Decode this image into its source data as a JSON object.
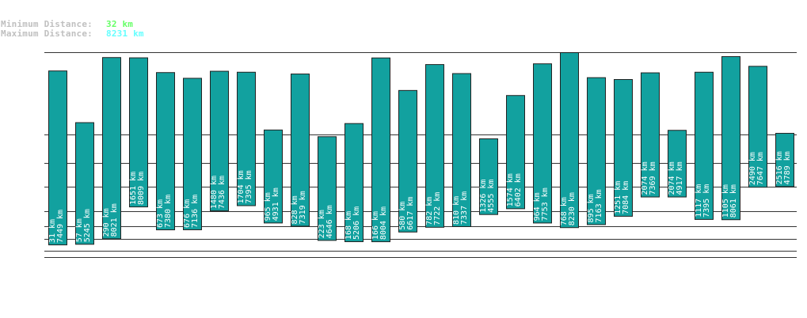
{
  "stats": {
    "min_label": "Minimum Distance:",
    "min_value": "32 km",
    "min_color": "#66ff66",
    "max_label": "Maximum Distance:",
    "max_value": "8231 km",
    "max_color": "#66ffff"
  },
  "colors": {
    "bar": "#12a19f",
    "bar_border": "#222222",
    "grid": "#333333",
    "label": "#ffffff"
  },
  "chart_data": {
    "type": "bar",
    "title": "",
    "xlabel": "",
    "ylabel": "",
    "unit": "km",
    "ylim": [
      0,
      8400
    ],
    "grid": true,
    "bars": [
      {
        "low": 31,
        "high": 7449
      },
      {
        "low": 57,
        "high": 5245
      },
      {
        "low": 290,
        "high": 8021
      },
      {
        "low": 1651,
        "high": 8009
      },
      {
        "low": 673,
        "high": 7380
      },
      {
        "low": 676,
        "high": 7136
      },
      {
        "low": 1480,
        "high": 7436
      },
      {
        "low": 1704,
        "high": 7395
      },
      {
        "low": 965,
        "high": 4931
      },
      {
        "low": 828,
        "high": 7319
      },
      {
        "low": 223,
        "high": 4646
      },
      {
        "low": 168,
        "high": 5206
      },
      {
        "low": 166,
        "high": 8004
      },
      {
        "low": 580,
        "high": 6617
      },
      {
        "low": 782,
        "high": 7722
      },
      {
        "low": 810,
        "high": 7337
      },
      {
        "low": 1326,
        "high": 4555
      },
      {
        "low": 1574,
        "high": 6402
      },
      {
        "low": 964,
        "high": 7753
      },
      {
        "low": 768,
        "high": 8230
      },
      {
        "low": 895,
        "high": 7163
      },
      {
        "low": 1251,
        "high": 7084
      },
      {
        "low": 2074,
        "high": 7369
      },
      {
        "low": 2074,
        "high": 4917
      },
      {
        "low": 1117,
        "high": 7395
      },
      {
        "low": 1105,
        "high": 8061
      },
      {
        "low": 2490,
        "high": 7647
      },
      {
        "low": 2516,
        "high": 4789
      }
    ]
  }
}
